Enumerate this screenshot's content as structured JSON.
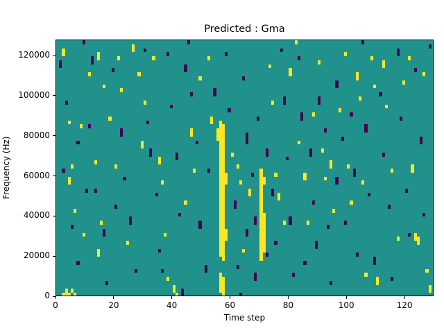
{
  "chart_data": {
    "type": "heatmap",
    "title": "Predicted : Gma",
    "xlabel": "Time step",
    "ylabel": "Frequency (Hz)",
    "xlim": [
      0,
      130
    ],
    "ylim": [
      0,
      128000
    ],
    "xticks": [
      0,
      20,
      40,
      60,
      80,
      100,
      120
    ],
    "yticks": [
      0,
      20000,
      40000,
      60000,
      80000,
      100000,
      120000
    ],
    "cell": {
      "dx": 1,
      "dy": 2000
    },
    "colors": {
      "background": "#21918c",
      "yellow": "#fde725",
      "purple": "#440154"
    },
    "legend": "none",
    "grid": false,
    "runs": [
      [
        2,
        0,
        2000,
        "y"
      ],
      [
        3,
        0,
        4000,
        "y"
      ],
      [
        4,
        0,
        2000,
        "y"
      ],
      [
        5,
        2000,
        4000,
        "y"
      ],
      [
        6,
        0,
        2000,
        "y"
      ],
      [
        2,
        120000,
        124000,
        "y"
      ],
      [
        4,
        86000,
        88000,
        "y"
      ],
      [
        5,
        64000,
        66000,
        "y"
      ],
      [
        4,
        56000,
        60000,
        "y"
      ],
      [
        6,
        42000,
        44000,
        "y"
      ],
      [
        9,
        30000,
        32000,
        "y"
      ],
      [
        8,
        84000,
        86000,
        "y"
      ],
      [
        11,
        110000,
        112000,
        "y"
      ],
      [
        14,
        118000,
        122000,
        "y"
      ],
      [
        16,
        104000,
        106000,
        "y"
      ],
      [
        13,
        66000,
        68000,
        "y"
      ],
      [
        15,
        36000,
        38000,
        "y"
      ],
      [
        14,
        20000,
        24000,
        "y"
      ],
      [
        18,
        88000,
        90000,
        "y"
      ],
      [
        21,
        118000,
        120000,
        "y"
      ],
      [
        22,
        102000,
        104000,
        "y"
      ],
      [
        20,
        64000,
        66000,
        "y"
      ],
      [
        24,
        26000,
        28000,
        "y"
      ],
      [
        26,
        122000,
        126000,
        "y"
      ],
      [
        28,
        110000,
        112000,
        "y"
      ],
      [
        29,
        74000,
        78000,
        "y"
      ],
      [
        30,
        96000,
        98000,
        "y"
      ],
      [
        33,
        118000,
        120000,
        "y"
      ],
      [
        35,
        66000,
        70000,
        "y"
      ],
      [
        36,
        56000,
        58000,
        "y"
      ],
      [
        37,
        30000,
        32000,
        "y"
      ],
      [
        38,
        8000,
        10000,
        "y"
      ],
      [
        40,
        2000,
        6000,
        "y"
      ],
      [
        41,
        0,
        2000,
        "y"
      ],
      [
        44,
        46000,
        48000,
        "y"
      ],
      [
        46,
        80000,
        84000,
        "y"
      ],
      [
        47,
        62000,
        64000,
        "y"
      ],
      [
        49,
        108000,
        110000,
        "y"
      ],
      [
        52,
        118000,
        120000,
        "y"
      ],
      [
        53,
        86000,
        90000,
        "y"
      ],
      [
        55,
        78000,
        84000,
        "y"
      ],
      [
        56,
        20000,
        88000,
        "y"
      ],
      [
        57,
        18000,
        86000,
        "y"
      ],
      [
        56,
        2000,
        12000,
        "y"
      ],
      [
        57,
        0,
        10000,
        "y"
      ],
      [
        58,
        56000,
        62000,
        "y"
      ],
      [
        58,
        28000,
        34000,
        "y"
      ],
      [
        60,
        70000,
        72000,
        "y"
      ],
      [
        62,
        64000,
        66000,
        "y"
      ],
      [
        63,
        56000,
        58000,
        "y"
      ],
      [
        64,
        22000,
        24000,
        "y"
      ],
      [
        66,
        50000,
        54000,
        "y"
      ],
      [
        70,
        18000,
        64000,
        "y"
      ],
      [
        71,
        22000,
        42000,
        "y"
      ],
      [
        71,
        56000,
        60000,
        "y"
      ],
      [
        73,
        114000,
        116000,
        "y"
      ],
      [
        74,
        96000,
        98000,
        "y"
      ],
      [
        75,
        60000,
        62000,
        "y"
      ],
      [
        76,
        48000,
        52000,
        "y"
      ],
      [
        78,
        36000,
        38000,
        "y"
      ],
      [
        80,
        110000,
        114000,
        "y"
      ],
      [
        82,
        126000,
        128000,
        "y"
      ],
      [
        83,
        76000,
        78000,
        "y"
      ],
      [
        85,
        58000,
        62000,
        "y"
      ],
      [
        86,
        36000,
        38000,
        "y"
      ],
      [
        88,
        90000,
        92000,
        "y"
      ],
      [
        90,
        116000,
        118000,
        "y"
      ],
      [
        91,
        72000,
        74000,
        "y"
      ],
      [
        92,
        58000,
        60000,
        "y"
      ],
      [
        94,
        64000,
        68000,
        "y"
      ],
      [
        95,
        42000,
        44000,
        "y"
      ],
      [
        97,
        92000,
        94000,
        "y"
      ],
      [
        99,
        120000,
        122000,
        "y"
      ],
      [
        100,
        64000,
        66000,
        "y"
      ],
      [
        101,
        46000,
        48000,
        "y"
      ],
      [
        103,
        108000,
        112000,
        "y"
      ],
      [
        104,
        98000,
        100000,
        "y"
      ],
      [
        105,
        56000,
        58000,
        "y"
      ],
      [
        106,
        10000,
        12000,
        "y"
      ],
      [
        108,
        118000,
        120000,
        "y"
      ],
      [
        109,
        104000,
        106000,
        "y"
      ],
      [
        110,
        6000,
        10000,
        "y"
      ],
      [
        112,
        114000,
        118000,
        "y"
      ],
      [
        113,
        94000,
        96000,
        "y"
      ],
      [
        115,
        62000,
        64000,
        "y"
      ],
      [
        117,
        28000,
        30000,
        "y"
      ],
      [
        119,
        106000,
        108000,
        "y"
      ],
      [
        121,
        118000,
        120000,
        "y"
      ],
      [
        122,
        62000,
        66000,
        "y"
      ],
      [
        123,
        28000,
        32000,
        "y"
      ],
      [
        124,
        26000,
        30000,
        "y"
      ],
      [
        126,
        110000,
        112000,
        "y"
      ],
      [
        127,
        12000,
        14000,
        "y"
      ],
      [
        128,
        2000,
        6000,
        "y"
      ],
      [
        1,
        114000,
        118000,
        "p"
      ],
      [
        3,
        96000,
        98000,
        "p"
      ],
      [
        2,
        62000,
        64000,
        "p"
      ],
      [
        5,
        34000,
        36000,
        "p"
      ],
      [
        7,
        16000,
        18000,
        "p"
      ],
      [
        9,
        126000,
        128000,
        "p"
      ],
      [
        12,
        116000,
        120000,
        "p"
      ],
      [
        11,
        84000,
        86000,
        "p"
      ],
      [
        13,
        52000,
        54000,
        "p"
      ],
      [
        16,
        30000,
        34000,
        "p"
      ],
      [
        17,
        6000,
        8000,
        "p"
      ],
      [
        19,
        112000,
        114000,
        "p"
      ],
      [
        22,
        80000,
        84000,
        "p"
      ],
      [
        23,
        58000,
        60000,
        "p"
      ],
      [
        25,
        36000,
        40000,
        "p"
      ],
      [
        27,
        12000,
        14000,
        "p"
      ],
      [
        30,
        122000,
        124000,
        "p"
      ],
      [
        31,
        86000,
        88000,
        "p"
      ],
      [
        32,
        70000,
        74000,
        "p"
      ],
      [
        34,
        50000,
        52000,
        "p"
      ],
      [
        35,
        22000,
        24000,
        "p"
      ],
      [
        38,
        120000,
        122000,
        "p"
      ],
      [
        39,
        94000,
        96000,
        "p"
      ],
      [
        41,
        68000,
        72000,
        "p"
      ],
      [
        42,
        40000,
        42000,
        "p"
      ],
      [
        43,
        0,
        4000,
        "p"
      ],
      [
        45,
        126000,
        128000,
        "p"
      ],
      [
        46,
        100000,
        102000,
        "p"
      ],
      [
        48,
        76000,
        78000,
        "p"
      ],
      [
        49,
        34000,
        38000,
        "p"
      ],
      [
        51,
        12000,
        16000,
        "p"
      ],
      [
        52,
        62000,
        64000,
        "p"
      ],
      [
        54,
        100000,
        104000,
        "p"
      ],
      [
        58,
        120000,
        122000,
        "p"
      ],
      [
        59,
        92000,
        94000,
        "p"
      ],
      [
        61,
        44000,
        48000,
        "p"
      ],
      [
        62,
        14000,
        16000,
        "p"
      ],
      [
        63,
        0,
        2000,
        "p"
      ],
      [
        64,
        108000,
        110000,
        "p"
      ],
      [
        65,
        76000,
        82000,
        "p"
      ],
      [
        65,
        30000,
        34000,
        "p"
      ],
      [
        67,
        60000,
        62000,
        "p"
      ],
      [
        68,
        36000,
        40000,
        "p"
      ],
      [
        68,
        8000,
        12000,
        "p"
      ],
      [
        69,
        88000,
        90000,
        "p"
      ],
      [
        72,
        70000,
        74000,
        "p"
      ],
      [
        72,
        20000,
        22000,
        "p"
      ],
      [
        74,
        50000,
        54000,
        "p"
      ],
      [
        75,
        26000,
        28000,
        "p"
      ],
      [
        77,
        122000,
        124000,
        "p"
      ],
      [
        78,
        96000,
        100000,
        "p"
      ],
      [
        79,
        68000,
        70000,
        "p"
      ],
      [
        80,
        36000,
        40000,
        "p"
      ],
      [
        81,
        10000,
        12000,
        "p"
      ],
      [
        83,
        118000,
        120000,
        "p"
      ],
      [
        84,
        88000,
        92000,
        "p"
      ],
      [
        85,
        16000,
        18000,
        "p"
      ],
      [
        87,
        70000,
        74000,
        "p"
      ],
      [
        88,
        46000,
        48000,
        "p"
      ],
      [
        89,
        24000,
        28000,
        "p"
      ],
      [
        90,
        96000,
        100000,
        "p"
      ],
      [
        92,
        82000,
        84000,
        "p"
      ],
      [
        93,
        34000,
        36000,
        "p"
      ],
      [
        94,
        6000,
        8000,
        "p"
      ],
      [
        96,
        104000,
        108000,
        "p"
      ],
      [
        96,
        56000,
        60000,
        "p"
      ],
      [
        98,
        78000,
        80000,
        "p"
      ],
      [
        99,
        36000,
        38000,
        "p"
      ],
      [
        101,
        90000,
        92000,
        "p"
      ],
      [
        102,
        60000,
        64000,
        "p"
      ],
      [
        103,
        20000,
        22000,
        "p"
      ],
      [
        105,
        126000,
        128000,
        "p"
      ],
      [
        106,
        82000,
        86000,
        "p"
      ],
      [
        107,
        50000,
        52000,
        "p"
      ],
      [
        109,
        16000,
        20000,
        "p"
      ],
      [
        111,
        100000,
        102000,
        "p"
      ],
      [
        112,
        70000,
        72000,
        "p"
      ],
      [
        114,
        44000,
        46000,
        "p"
      ],
      [
        115,
        8000,
        10000,
        "p"
      ],
      [
        117,
        120000,
        124000,
        "p"
      ],
      [
        118,
        88000,
        90000,
        "p"
      ],
      [
        120,
        52000,
        54000,
        "p"
      ],
      [
        121,
        30000,
        32000,
        "p"
      ],
      [
        123,
        112000,
        114000,
        "p"
      ],
      [
        125,
        76000,
        80000,
        "p"
      ],
      [
        126,
        40000,
        42000,
        "p"
      ],
      [
        128,
        124000,
        126000,
        "p"
      ],
      [
        44,
        112000,
        116000,
        "p"
      ],
      [
        36,
        12000,
        14000,
        "p"
      ],
      [
        20,
        44000,
        46000,
        "p"
      ],
      [
        10,
        52000,
        54000,
        "p"
      ],
      [
        7,
        76000,
        78000,
        "p"
      ]
    ]
  }
}
